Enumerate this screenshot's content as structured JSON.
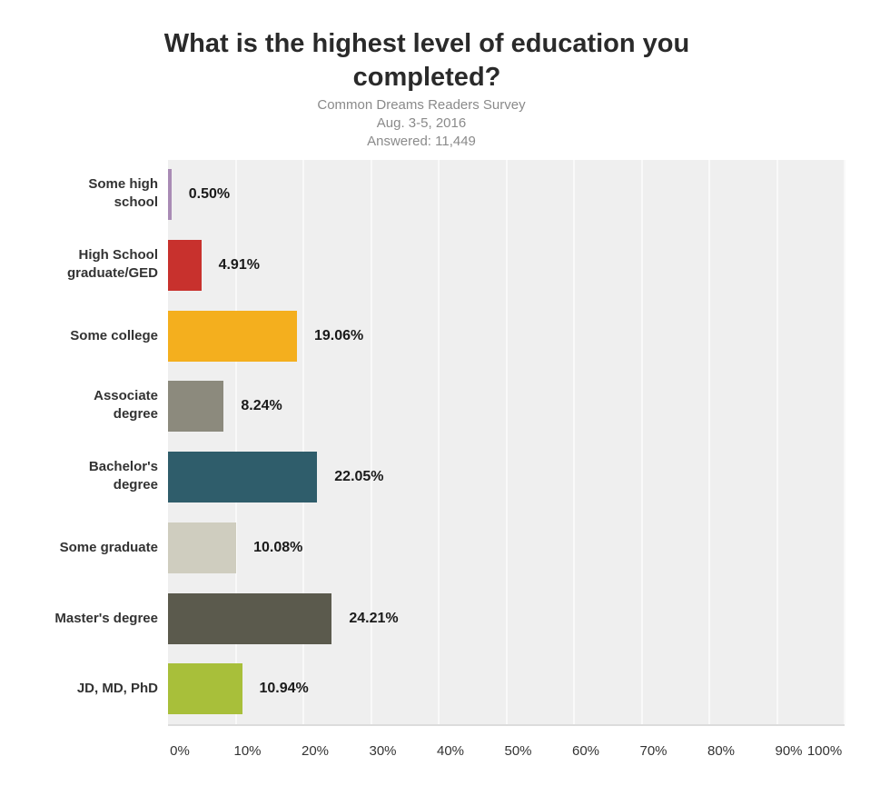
{
  "header": {
    "title_line1": "What is the highest level of education you",
    "title_line2": "completed?",
    "subtitle_line1": "Common Dreams Readers Survey",
    "subtitle_line2": "Aug. 3-5, 2016",
    "subtitle_line3": "Answered:  11,449"
  },
  "chart_data": {
    "type": "bar",
    "orientation": "horizontal",
    "title": "What is the highest level of education you completed?",
    "subtitle": "Common Dreams Readers Survey / Aug. 3-5, 2016 / Answered: 11,449",
    "categories": [
      "Some high school",
      "High School graduate/GED",
      "Some college",
      "Associate degree",
      "Bachelor's degree",
      "Some graduate",
      "Master's degree",
      "JD, MD, PhD"
    ],
    "values": [
      0.5,
      4.91,
      19.06,
      8.24,
      22.05,
      10.08,
      24.21,
      10.94
    ],
    "value_labels": [
      "0.50%",
      "4.91%",
      "19.06%",
      "8.24%",
      "22.05%",
      "10.08%",
      "24.21%",
      "10.94%"
    ],
    "colors": [
      "#a98bb5",
      "#c8312d",
      "#f4af1e",
      "#8c8a7d",
      "#2f5d6b",
      "#cfcdbf",
      "#5b5a4d",
      "#a8bf3a"
    ],
    "xlabel": "",
    "ylabel": "",
    "xlim": [
      0,
      100
    ],
    "x_ticks": [
      "0%",
      "10%",
      "20%",
      "30%",
      "40%",
      "50%",
      "60%",
      "70%",
      "80%",
      "90%",
      "100%"
    ],
    "grid": true,
    "legend": "none"
  },
  "rows": [
    {
      "label1": "Some high",
      "label2": "school",
      "value": "0.50%"
    },
    {
      "label1": "High School",
      "label2": "graduate/GED",
      "value": "4.91%"
    },
    {
      "label1": "Some college",
      "label2": "",
      "value": "19.06%"
    },
    {
      "label1": "Associate",
      "label2": "degree",
      "value": "8.24%"
    },
    {
      "label1": "Bachelor's",
      "label2": "degree",
      "value": "22.05%"
    },
    {
      "label1": "Some graduate",
      "label2": "",
      "value": "10.08%"
    },
    {
      "label1": "Master's degree",
      "label2": "",
      "value": "24.21%"
    },
    {
      "label1": "JD, MD, PhD",
      "label2": "",
      "value": "10.94%"
    }
  ],
  "axis": {
    "ticks": [
      "0%",
      "10%",
      "20%",
      "30%",
      "40%",
      "50%",
      "60%",
      "70%",
      "80%",
      "90%",
      "100%"
    ]
  }
}
